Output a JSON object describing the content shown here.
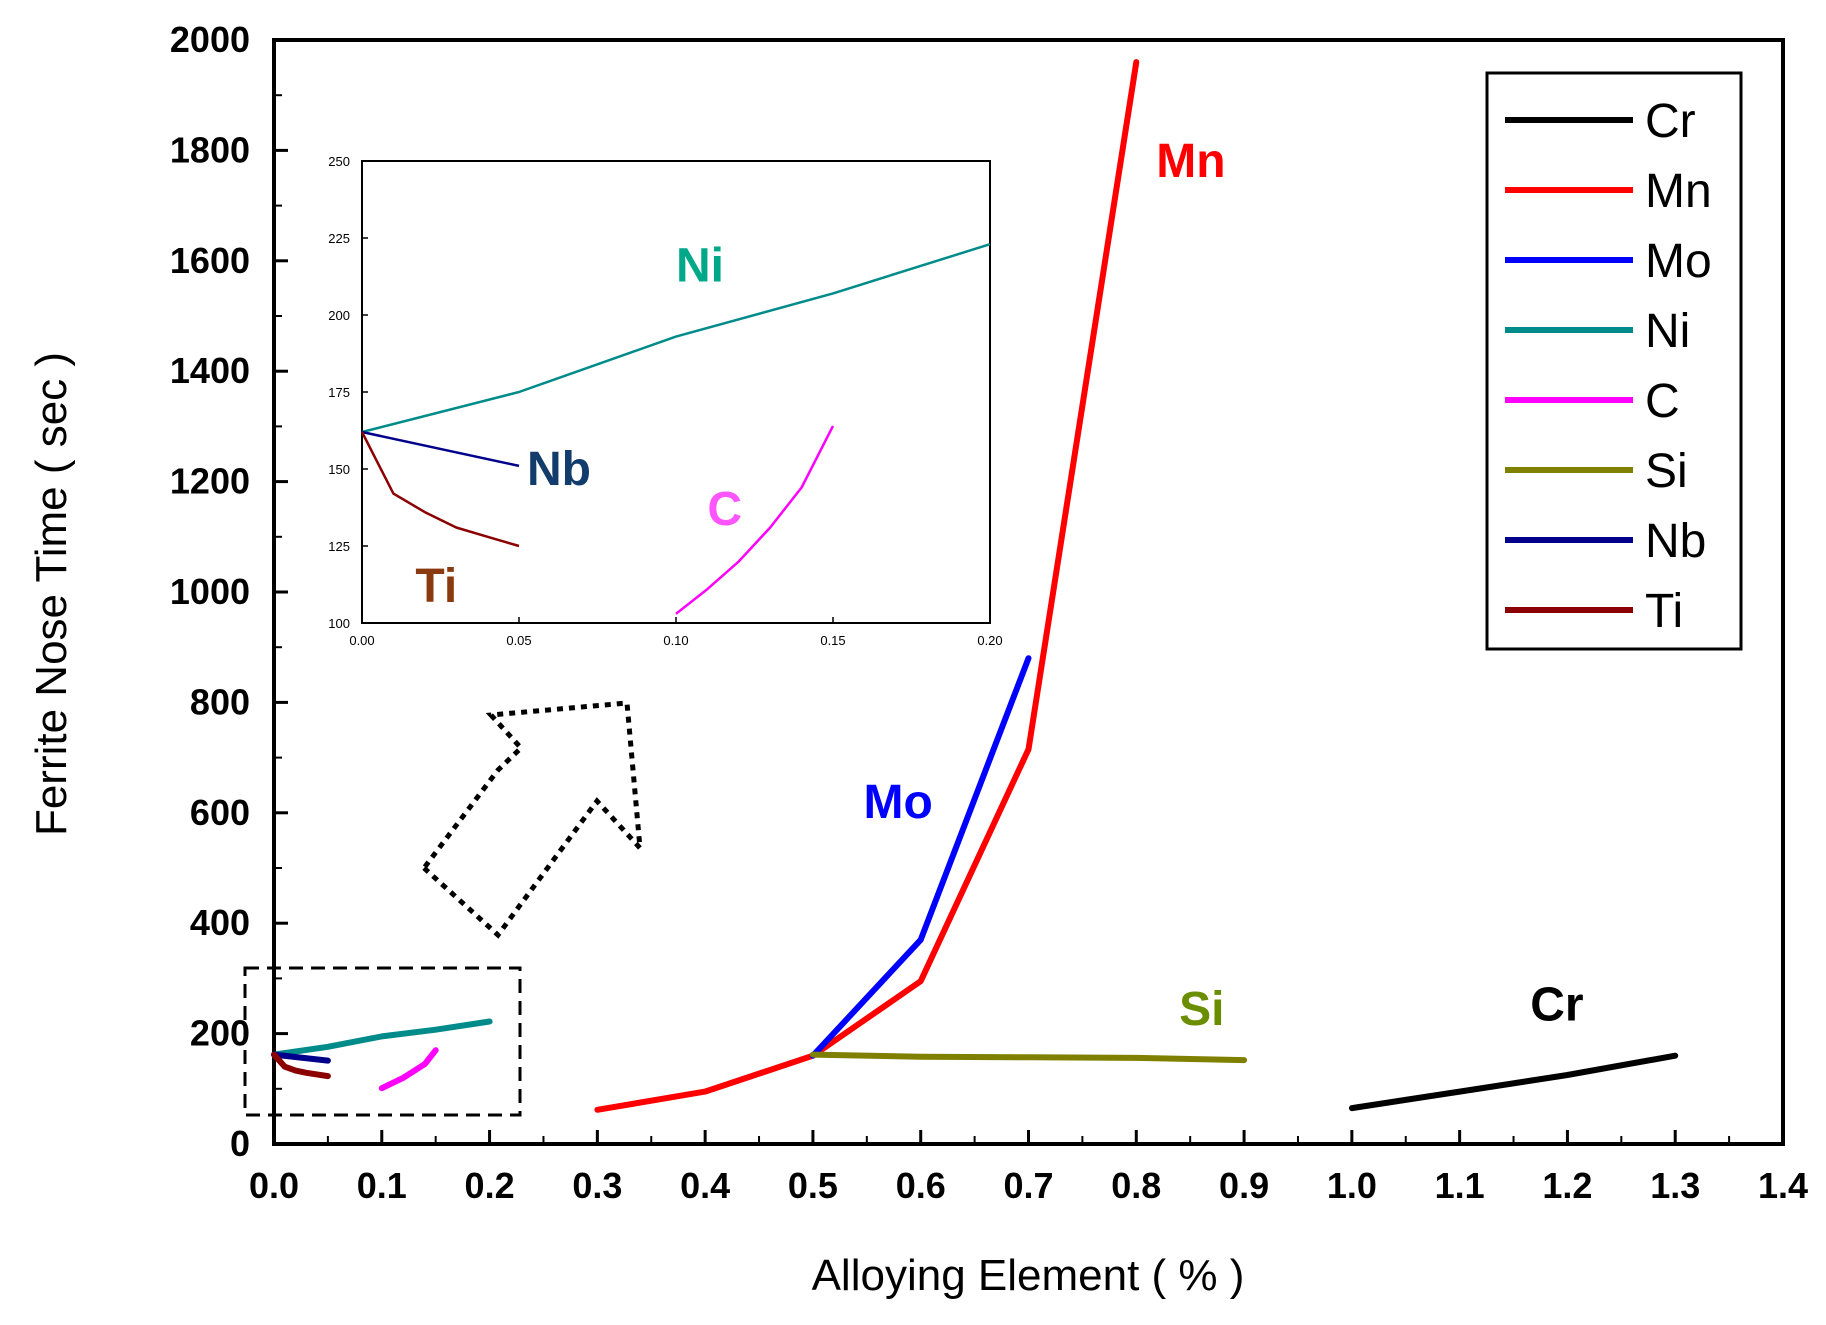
{
  "chart_data": {
    "main": {
      "type": "line",
      "xlabel": "Alloying Element ( % )",
      "ylabel": "Ferrite Nose Time ( sec )",
      "xlim": [
        0,
        1.4
      ],
      "ylim": [
        0,
        2000
      ],
      "xticks": [
        "0.0",
        "0.1",
        "0.2",
        "0.3",
        "0.4",
        "0.5",
        "0.6",
        "0.7",
        "0.8",
        "0.9",
        "1.0",
        "1.1",
        "1.2",
        "1.3",
        "1.4"
      ],
      "yticks": [
        "0",
        "200",
        "400",
        "600",
        "800",
        "1000",
        "1200",
        "1400",
        "1600",
        "1800",
        "2000"
      ],
      "legend_position": "top-right",
      "legend": [
        {
          "name": "Cr",
          "color": "#000000"
        },
        {
          "name": "Mn",
          "color": "#ff0000"
        },
        {
          "name": "Mo",
          "color": "#0000ff"
        },
        {
          "name": "Ni",
          "color": "#008b8b"
        },
        {
          "name": "C",
          "color": "#ff00ff"
        },
        {
          "name": "Si",
          "color": "#808000"
        },
        {
          "name": "Nb",
          "color": "#00008b"
        },
        {
          "name": "Ti",
          "color": "#8b0000"
        }
      ],
      "series": [
        {
          "name": "Cr",
          "color": "#000000",
          "label": "Cr",
          "label_color": "#000000",
          "x": [
            1.0,
            1.1,
            1.2,
            1.3
          ],
          "y": [
            65,
            95,
            125,
            160
          ]
        },
        {
          "name": "Mn",
          "color": "#ff0000",
          "label": "Mn",
          "label_color": "#ff0000",
          "x": [
            0.3,
            0.4,
            0.5,
            0.6,
            0.7,
            0.8
          ],
          "y": [
            62,
            95,
            160,
            295,
            715,
            1960
          ]
        },
        {
          "name": "Mo",
          "color": "#0000ff",
          "label": "Mo",
          "label_color": "#0000ff",
          "x": [
            0.5,
            0.6,
            0.7
          ],
          "y": [
            160,
            370,
            880
          ]
        },
        {
          "name": "Si",
          "color": "#808000",
          "label": "Si",
          "label_color": "#6b8e00",
          "x": [
            0.5,
            0.6,
            0.7,
            0.8,
            0.9
          ],
          "y": [
            162,
            158,
            157,
            156,
            152
          ]
        },
        {
          "name": "Ni",
          "color": "#008b8b",
          "label": "",
          "label_color": "#008b8b",
          "x": [
            0.0,
            0.05,
            0.1,
            0.15,
            0.2
          ],
          "y": [
            162,
            176,
            195,
            207,
            222
          ]
        },
        {
          "name": "Nb",
          "color": "#00008b",
          "label": "",
          "label_color": "#00008b",
          "x": [
            0.0,
            0.05
          ],
          "y": [
            162,
            151
          ]
        },
        {
          "name": "Ti",
          "color": "#8b0000",
          "label": "",
          "label_color": "#8b0000",
          "x": [
            0.0,
            0.01,
            0.02,
            0.03,
            0.05
          ],
          "y": [
            162,
            140,
            133,
            129,
            123
          ]
        },
        {
          "name": "C",
          "color": "#ff00ff",
          "label": "",
          "label_color": "#ff00ff",
          "x": [
            0.1,
            0.12,
            0.14,
            0.15
          ],
          "y": [
            101,
            120,
            145,
            170
          ]
        }
      ]
    },
    "inset": {
      "type": "line",
      "xlim": [
        0,
        0.2
      ],
      "ylim": [
        100,
        250
      ],
      "xticks": [
        "0.00",
        "0.05",
        "0.10",
        "0.15",
        "0.20"
      ],
      "yticks": [
        "100",
        "125",
        "150",
        "175",
        "200",
        "225",
        "250"
      ],
      "series": [
        {
          "name": "Ni",
          "color": "#008b8b",
          "label": "Ni",
          "label_color": "#00a88a",
          "x": [
            0.0,
            0.05,
            0.1,
            0.15,
            0.2
          ],
          "y": [
            162,
            175,
            193,
            207,
            223
          ]
        },
        {
          "name": "Nb",
          "color": "#00008b",
          "label": "Nb",
          "label_color": "#123c6b",
          "x": [
            0.0,
            0.05
          ],
          "y": [
            162,
            151
          ]
        },
        {
          "name": "Ti",
          "color": "#8b0000",
          "label": "Ti",
          "label_color": "#8b3a0f",
          "x": [
            0.0,
            0.01,
            0.02,
            0.03,
            0.04,
            0.05
          ],
          "y": [
            162,
            142,
            136,
            131,
            128,
            125
          ]
        },
        {
          "name": "C",
          "color": "#ff00ff",
          "label": "C",
          "label_color": "#ff55ff",
          "x": [
            0.1,
            0.11,
            0.12,
            0.13,
            0.14,
            0.15
          ],
          "y": [
            103,
            111,
            120,
            131,
            144,
            164
          ]
        }
      ]
    }
  }
}
